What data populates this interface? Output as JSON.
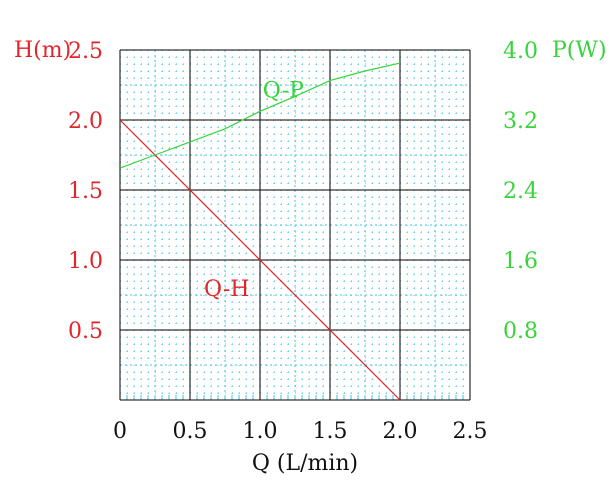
{
  "chart_data": {
    "type": "line",
    "xlabel": "Q (L/min)",
    "x_ticks": [
      "0",
      "0.5",
      "1.0",
      "1.5",
      "2.0",
      "2.5"
    ],
    "xlim": [
      0,
      2.5
    ],
    "left_axis": {
      "label": "H(m)",
      "ylim": [
        0,
        2.5
      ],
      "ticks": [
        {
          "value": 0.5,
          "label": "0.5"
        },
        {
          "value": 1.0,
          "label": "1.0"
        },
        {
          "value": 1.5,
          "label": "1.5"
        },
        {
          "value": 2.0,
          "label": "2.0"
        },
        {
          "value": 2.5,
          "label": "2.5"
        }
      ]
    },
    "right_axis": {
      "label": "P(W)",
      "ylim": [
        0,
        4.0
      ],
      "ticks": [
        {
          "value": 0.8,
          "label": "0.8"
        },
        {
          "value": 1.6,
          "label": "1.6"
        },
        {
          "value": 2.4,
          "label": "2.4"
        },
        {
          "value": 3.2,
          "label": "3.2"
        },
        {
          "value": 4.0,
          "label": "4.0"
        }
      ]
    },
    "series": [
      {
        "name": "Q-H",
        "axis": "left",
        "color": "#e0262b",
        "x": [
          0,
          2.0
        ],
        "y": [
          2.0,
          0
        ]
      },
      {
        "name": "Q-P",
        "axis": "right",
        "color": "#36d43a",
        "x": [
          0,
          0.25,
          0.5,
          0.75,
          1.0,
          1.25,
          1.5,
          1.75,
          2.0
        ],
        "y": [
          2.65,
          2.8,
          2.95,
          3.1,
          3.3,
          3.47,
          3.65,
          3.76,
          3.85
        ]
      }
    ],
    "grid": true,
    "colors": {
      "major_grid": "#000000",
      "minor_grid": "#39c6e0",
      "left_axis_text": "#e0262b",
      "right_axis_text": "#36d43a",
      "x_axis_text": "#111111"
    }
  }
}
